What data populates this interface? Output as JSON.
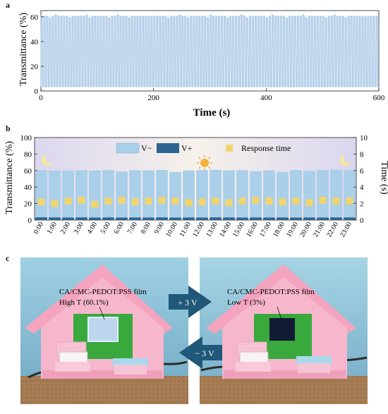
{
  "panel_labels": [
    "a",
    "b",
    "c"
  ],
  "chart_data": [
    {
      "type": "line",
      "panel": "a",
      "xlabel": "Time (s)",
      "ylabel": "Transmittance (%)",
      "xlim": [
        0,
        600
      ],
      "ylim": [
        0,
        65
      ],
      "xticks": [
        "0",
        "200",
        "400",
        "600"
      ],
      "yticks": [
        "0",
        "20",
        "40",
        "60"
      ],
      "series": [
        {
          "high": 60.5,
          "low": 3.5,
          "period_s": 5,
          "cycles": 120,
          "color": "#a9c7e6"
        }
      ]
    },
    {
      "type": "bar",
      "panel": "b",
      "ylabel": "Transmittance (%)",
      "y2label": "Time (s)",
      "ylim": [
        0,
        100
      ],
      "y2lim": [
        0,
        10
      ],
      "yticks": [
        "0",
        "20",
        "40",
        "60",
        "80",
        "100"
      ],
      "y2ticks": [
        "0",
        "2",
        "4",
        "6",
        "8",
        "10"
      ],
      "categories": [
        "0:00",
        "1:00",
        "2:00",
        "3:00",
        "4:00",
        "5:00",
        "6:00",
        "7:00",
        "8:00",
        "9:00",
        "10:00",
        "11:00",
        "12:00",
        "13:00",
        "14:00",
        "15:00",
        "16:00",
        "17:00",
        "18:00",
        "19:00",
        "20:00",
        "21:00",
        "22:00",
        "23:00"
      ],
      "series": [
        {
          "name": "V−",
          "color": "#a9cfe9",
          "values": [
            60.5,
            60.2,
            60.1,
            60.3,
            60.0,
            60.6,
            58.8,
            60.4,
            60.2,
            60.7,
            58.3,
            60.1,
            60.5,
            60.8,
            60.2,
            60.4,
            59.2,
            60.3,
            58.4,
            60.5,
            59.6,
            60.6,
            60.9,
            60.7
          ]
        },
        {
          "name": "V+",
          "color": "#2c6591",
          "values": [
            3.3,
            3.1,
            3.0,
            3.2,
            3.0,
            3.1,
            3.0,
            3.1,
            3.0,
            3.2,
            3.0,
            3.1,
            3.0,
            3.2,
            3.1,
            3.0,
            3.1,
            3.0,
            3.1,
            3.0,
            3.1,
            3.0,
            3.2,
            3.1
          ]
        },
        {
          "name": "Response time",
          "color": "#f2d46f",
          "axis": "right",
          "values": [
            2.2,
            2.0,
            2.3,
            2.4,
            1.9,
            2.3,
            2.4,
            2.2,
            2.3,
            2.4,
            2.3,
            2.1,
            2.2,
            2.3,
            2.1,
            2.3,
            2.4,
            2.3,
            2.2,
            2.3,
            2.1,
            2.4,
            2.3,
            2.3
          ]
        }
      ],
      "legend": "top"
    }
  ],
  "photo_panel": {
    "left": {
      "film_label": "CA/CMC-PEDOT:PSS film",
      "state_label": "High T (60.1%)"
    },
    "right": {
      "film_label": "CA/CMC-PEDOT:PSS film",
      "state_label": "Low T (3%)"
    },
    "arrow_forward": "+ 3 V",
    "arrow_back": "− 3 V"
  }
}
